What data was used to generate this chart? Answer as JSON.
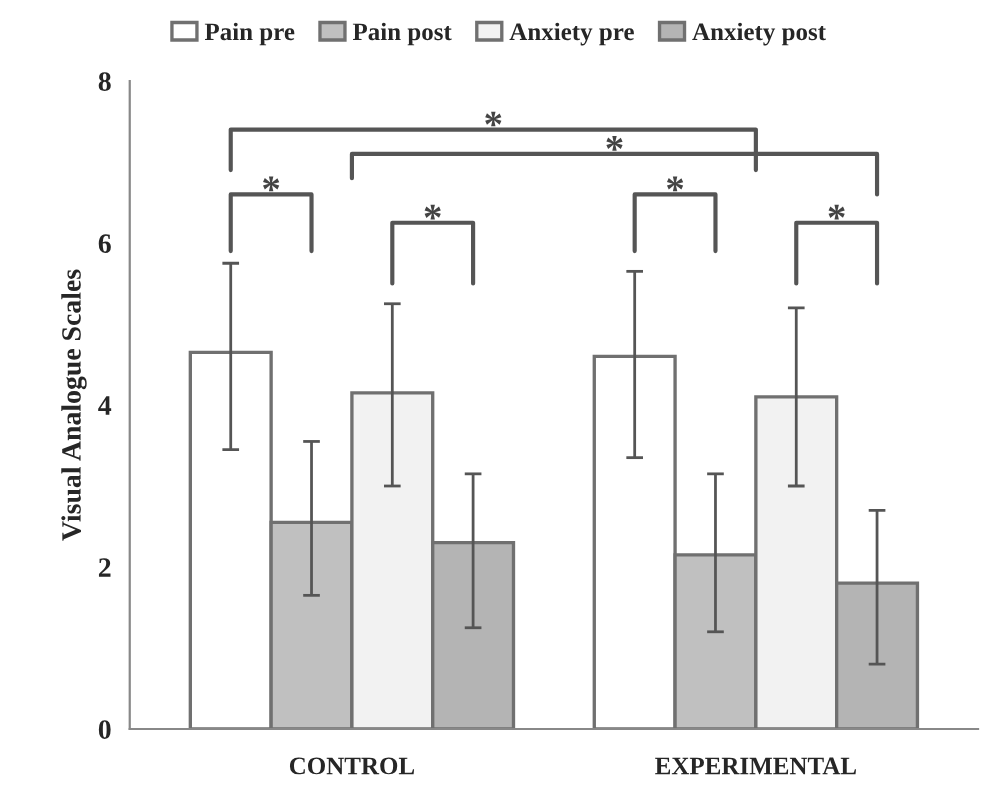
{
  "chart_data": {
    "type": "bar",
    "ylabel": "Visual Analogue Scales",
    "categories": [
      "CONTROL",
      "EXPERIMENTAL"
    ],
    "series": [
      {
        "name": "Pain pre",
        "color": "#ffffff",
        "values": [
          4.65,
          4.6
        ],
        "errors": [
          [
            3.45,
            5.75
          ],
          [
            3.35,
            5.65
          ]
        ]
      },
      {
        "name": "Pain post",
        "color": "#c0c0c0",
        "values": [
          2.55,
          2.15
        ],
        "errors": [
          [
            1.65,
            3.55
          ],
          [
            1.2,
            3.15
          ]
        ]
      },
      {
        "name": "Anxiety pre",
        "color": "#f2f2f2",
        "values": [
          4.15,
          4.1
        ],
        "errors": [
          [
            3.0,
            5.25
          ],
          [
            3.0,
            5.2
          ]
        ]
      },
      {
        "name": "Anxiety post",
        "color": "#b4b4b4",
        "values": [
          2.3,
          1.8
        ],
        "errors": [
          [
            1.25,
            3.15
          ],
          [
            0.8,
            2.7
          ]
        ]
      }
    ],
    "ylim": [
      0,
      8
    ],
    "yticks": [
      0,
      2,
      4,
      6,
      8
    ],
    "annotations": [
      "*",
      "*",
      "*",
      "*",
      "*",
      "*"
    ],
    "grid": false,
    "legend": "top"
  }
}
